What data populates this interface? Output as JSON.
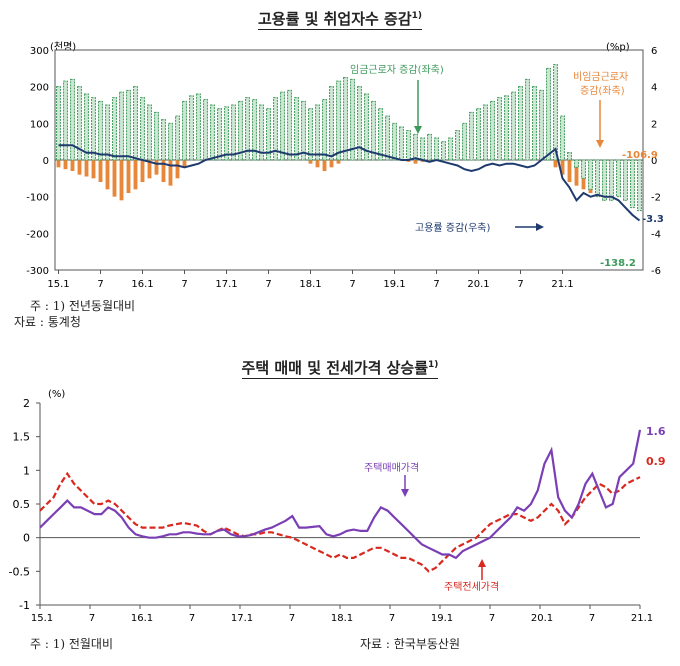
{
  "chart1": {
    "title": "고용률 및 취업자수 증감",
    "title_sup": "1)",
    "left_unit": "(천명)",
    "right_unit": "(%p)",
    "left_ylim": [
      -300,
      300
    ],
    "left_ticks": [
      "300",
      "200",
      "100",
      "0",
      "-100",
      "-200",
      "-300"
    ],
    "right_ylim": [
      -6,
      6
    ],
    "right_ticks": [
      "6",
      "4",
      "2",
      "0",
      "-2",
      "-4",
      "-6"
    ],
    "x_labels": [
      "15.1",
      "7",
      "16.1",
      "7",
      "17.1",
      "7",
      "18.1",
      "7",
      "19.1",
      "7",
      "20.1",
      "7",
      "21.1"
    ],
    "ann_wage": "임금근로자 증감(좌축)",
    "ann_nonwage_1": "비임금근로자",
    "ann_nonwage_2": "증감(좌축)",
    "ann_emp": "고용률 증감(우축)",
    "val_nonwage_last": "-106.9",
    "val_emp_last": "-3.3",
    "val_wage_last": "-138.2",
    "note": "주 : 1) 전년동월대비",
    "source": "자료 : 통계청"
  },
  "chart2": {
    "title": "주택 매매 및 전세가격 상승률",
    "title_sup": "1)",
    "unit": "(%)",
    "ylim": [
      -1,
      2
    ],
    "y_ticks": [
      "2",
      "1.5",
      "1",
      "0.5",
      "0",
      "-0.5",
      "-1"
    ],
    "x_labels": [
      "15.1",
      "7",
      "16.1",
      "7",
      "17.1",
      "7",
      "18.1",
      "7",
      "19.1",
      "7",
      "20.1",
      "7",
      "21.1"
    ],
    "ann_sale": "주택매매가격",
    "ann_jeonse": "주택전세가격",
    "val_sale_last": "1.6",
    "val_jeonse_last": "0.9",
    "note": "주 : 1) 전월대비",
    "source": "자료 : 한국부동산원"
  },
  "colors": {
    "wage": "#3e9a5c",
    "nonwage": "#e8873a",
    "emp": "#1f3a6e",
    "sale": "#7b3fb5",
    "jeonse": "#d9281e"
  },
  "chart_data": [
    {
      "type": "bar",
      "title": "고용률 및 취업자수 증감",
      "months_start": "2015-01",
      "series": [
        {
          "name": "임금근로자 증감(좌축)",
          "axis": "left",
          "values": [
            200,
            215,
            220,
            200,
            180,
            170,
            160,
            150,
            170,
            185,
            190,
            200,
            170,
            150,
            130,
            110,
            100,
            120,
            160,
            175,
            180,
            165,
            150,
            140,
            145,
            150,
            160,
            170,
            165,
            150,
            140,
            170,
            185,
            190,
            170,
            160,
            140,
            150,
            165,
            200,
            215,
            225,
            220,
            200,
            180,
            160,
            140,
            120,
            100,
            90,
            80,
            70,
            60,
            70,
            60,
            50,
            60,
            80,
            100,
            130,
            140,
            150,
            160,
            170,
            175,
            185,
            200,
            220,
            200,
            190,
            250,
            260,
            120,
            20,
            -20,
            -50,
            -80,
            -100,
            -110,
            -110,
            -100,
            -110,
            -130,
            -138.2
          ]
        },
        {
          "name": "비임금근로자 증감(좌축)",
          "axis": "left",
          "values": [
            -20,
            -25,
            -30,
            -40,
            -45,
            -50,
            -60,
            -80,
            -100,
            -110,
            -90,
            -80,
            -60,
            -50,
            -40,
            -60,
            -70,
            -50,
            -20,
            0,
            10,
            30,
            50,
            70,
            90,
            100,
            120,
            140,
            130,
            110,
            90,
            70,
            60,
            40,
            20,
            0,
            -10,
            -20,
            -30,
            -20,
            -10,
            0,
            10,
            15,
            20,
            30,
            25,
            10,
            5,
            0,
            -5,
            -10,
            -5,
            5,
            10,
            20,
            30,
            40,
            40,
            30,
            20,
            30,
            40,
            50,
            60,
            50,
            30,
            20,
            10,
            5,
            0,
            -20,
            -40,
            -60,
            -70,
            -80,
            -90,
            -100,
            -100,
            -105,
            -100,
            -110,
            -106.9
          ]
        },
        {
          "name": "고용률 증감(우축)",
          "axis": "right",
          "values": [
            0.8,
            0.8,
            0.8,
            0.6,
            0.4,
            0.4,
            0.3,
            0.3,
            0.2,
            0.2,
            0.2,
            0.1,
            0.0,
            -0.1,
            -0.2,
            -0.2,
            -0.3,
            -0.3,
            -0.4,
            -0.3,
            -0.2,
            0.0,
            0.1,
            0.2,
            0.3,
            0.3,
            0.4,
            0.5,
            0.5,
            0.4,
            0.4,
            0.5,
            0.4,
            0.3,
            0.3,
            0.4,
            0.3,
            0.3,
            0.3,
            0.2,
            0.4,
            0.5,
            0.6,
            0.7,
            0.5,
            0.4,
            0.3,
            0.2,
            0.1,
            0.0,
            0.0,
            0.1,
            0.0,
            -0.1,
            0.0,
            -0.1,
            -0.2,
            -0.3,
            -0.5,
            -0.6,
            -0.5,
            -0.3,
            -0.2,
            -0.3,
            -0.2,
            -0.2,
            -0.3,
            -0.4,
            -0.3,
            0.0,
            0.3,
            0.6,
            -1.0,
            -1.5,
            -2.2,
            -1.8,
            -2.0,
            -1.9,
            -2.0,
            -2.0,
            -2.2,
            -2.6,
            -3.0,
            -3.3
          ]
        }
      ]
    },
    {
      "type": "line",
      "title": "주택 매매 및 전세가격 상승률",
      "months_start": "2015-01",
      "series": [
        {
          "name": "주택매매가격",
          "values": [
            0.15,
            0.25,
            0.35,
            0.45,
            0.55,
            0.45,
            0.45,
            0.4,
            0.35,
            0.35,
            0.45,
            0.4,
            0.3,
            0.15,
            0.05,
            0.02,
            0.0,
            0.0,
            0.02,
            0.05,
            0.05,
            0.08,
            0.08,
            0.06,
            0.05,
            0.05,
            0.1,
            0.12,
            0.05,
            0.02,
            0.02,
            0.04,
            0.08,
            0.12,
            0.15,
            0.2,
            0.25,
            0.32,
            0.15,
            0.15,
            0.16,
            0.17,
            0.05,
            0.02,
            0.05,
            0.1,
            0.12,
            0.1,
            0.1,
            0.3,
            0.45,
            0.4,
            0.3,
            0.2,
            0.1,
            0.0,
            -0.1,
            -0.15,
            -0.2,
            -0.25,
            -0.25,
            -0.3,
            -0.2,
            -0.15,
            -0.1,
            -0.05,
            0.0,
            0.1,
            0.2,
            0.3,
            0.45,
            0.4,
            0.5,
            0.7,
            1.1,
            1.3,
            0.6,
            0.4,
            0.3,
            0.5,
            0.8,
            0.95,
            0.7,
            0.45,
            0.5,
            0.9,
            1.0,
            1.1,
            1.6
          ]
        },
        {
          "name": "주택전세가격",
          "values": [
            0.4,
            0.5,
            0.6,
            0.8,
            0.95,
            0.8,
            0.7,
            0.6,
            0.5,
            0.5,
            0.55,
            0.5,
            0.4,
            0.3,
            0.2,
            0.15,
            0.15,
            0.15,
            0.15,
            0.18,
            0.2,
            0.22,
            0.2,
            0.18,
            0.1,
            0.05,
            0.1,
            0.15,
            0.1,
            0.05,
            0.02,
            0.05,
            0.05,
            0.08,
            0.08,
            0.05,
            0.02,
            0.0,
            -0.05,
            -0.1,
            -0.15,
            -0.2,
            -0.25,
            -0.3,
            -0.25,
            -0.3,
            -0.3,
            -0.25,
            -0.2,
            -0.15,
            -0.15,
            -0.2,
            -0.25,
            -0.3,
            -0.3,
            -0.35,
            -0.4,
            -0.5,
            -0.45,
            -0.35,
            -0.25,
            -0.15,
            -0.1,
            -0.05,
            0.0,
            0.1,
            0.2,
            0.25,
            0.3,
            0.35,
            0.35,
            0.3,
            0.25,
            0.3,
            0.4,
            0.5,
            0.4,
            0.2,
            0.3,
            0.45,
            0.6,
            0.7,
            0.8,
            0.75,
            0.65,
            0.7,
            0.8,
            0.85,
            0.9
          ]
        }
      ]
    }
  ]
}
